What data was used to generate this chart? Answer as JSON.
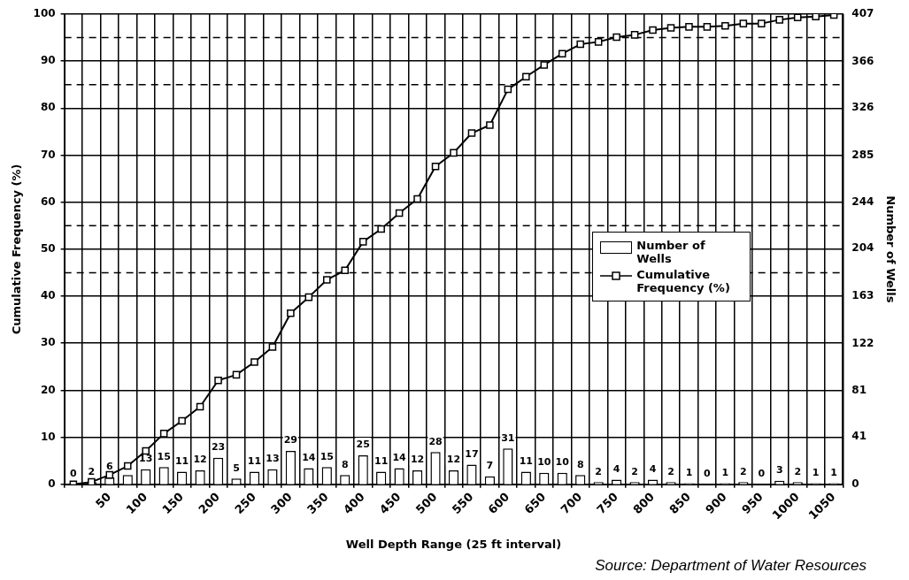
{
  "chart_data": {
    "type": "bar",
    "xlabel": "Well Depth Range (25 ft interval)",
    "ylabel": "Cumulative Frequency (%)",
    "y2label": "Number of Wells",
    "annotations": [
      "Source: Department of Water Resources"
    ],
    "categories": [
      null,
      null,
      "50",
      null,
      "100",
      null,
      "150",
      null,
      "200",
      null,
      "250",
      null,
      "300",
      null,
      "350",
      null,
      "400",
      null,
      "450",
      null,
      "500",
      null,
      "550",
      null,
      "600",
      null,
      "650",
      null,
      "700",
      null,
      "750",
      null,
      "800",
      null,
      "850",
      null,
      "900",
      null,
      "950",
      null,
      "1000",
      null,
      "1050"
    ],
    "series": [
      {
        "name": "Number of Wells",
        "axis": "y2",
        "color": "#ffffff",
        "values": [
          0,
          2,
          6,
          8,
          13,
          15,
          11,
          12,
          23,
          5,
          11,
          13,
          29,
          14,
          15,
          8,
          25,
          11,
          14,
          12,
          28,
          12,
          17,
          7,
          31,
          11,
          10,
          10,
          8,
          2,
          4,
          2,
          4,
          2,
          1,
          0,
          1,
          2,
          0,
          3,
          2,
          1,
          1
        ],
        "value_labels": [
          "0",
          "2",
          "6",
          null,
          "13",
          "15",
          "11",
          "12",
          "23",
          "5",
          "11",
          "13",
          "29",
          "14",
          "15",
          "8",
          "25",
          "11",
          "14",
          "12",
          "28",
          "12",
          "17",
          "7",
          "31",
          "11",
          "10",
          "10",
          "8",
          "2",
          "4",
          "2",
          "4",
          "2",
          "1",
          "0",
          "1",
          "2",
          "0",
          "3",
          "2",
          "1",
          "1"
        ]
      },
      {
        "name": "Cumulative Frequency (%)",
        "type": "line",
        "color": "#000000",
        "marker": "square",
        "values": [
          0,
          0.5,
          2.0,
          3.9,
          7.1,
          10.8,
          13.5,
          16.5,
          22.1,
          23.3,
          26.0,
          29.2,
          36.4,
          39.8,
          43.5,
          45.5,
          51.6,
          54.3,
          57.7,
          60.7,
          67.6,
          70.5,
          74.7,
          76.4,
          84.0,
          86.7,
          89.2,
          91.6,
          93.6,
          94.1,
          95.1,
          95.6,
          96.6,
          97.1,
          97.3,
          97.3,
          97.5,
          98.0,
          98.0,
          98.8,
          99.3,
          99.5,
          99.8
        ]
      }
    ],
    "ylim": [
      0,
      100
    ],
    "yticks": [
      0,
      10,
      20,
      30,
      40,
      50,
      60,
      70,
      80,
      90,
      100
    ],
    "y2lim": [
      0,
      407
    ],
    "y2ticks": [
      0,
      41,
      81,
      122,
      163,
      204,
      244,
      285,
      326,
      366,
      407
    ],
    "ref_lines": [
      {
        "axis": "y",
        "value": 95,
        "line_style": "dashed"
      },
      {
        "axis": "y",
        "value": 85,
        "line_style": "dashed"
      },
      {
        "axis": "y",
        "value": 55,
        "line_style": "dashed"
      },
      {
        "axis": "y",
        "value": 45,
        "line_style": "dashed"
      }
    ],
    "grid": true,
    "legend": "right"
  }
}
